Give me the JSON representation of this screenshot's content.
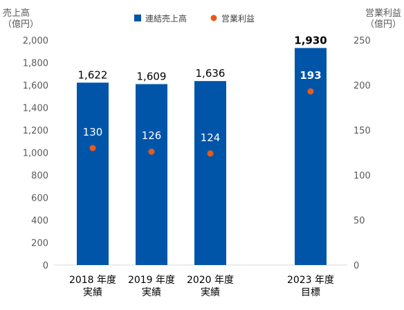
{
  "chart_data": {
    "type": "bar",
    "categories": [
      [
        "2018 年度",
        "実績"
      ],
      [
        "2019 年度",
        "実績"
      ],
      [
        "2020 年度",
        "実績"
      ],
      [
        "2023 年度",
        "目標"
      ]
    ],
    "legend": {
      "placement": "top-center",
      "items": [
        {
          "name": "連結売上高",
          "marker": "square",
          "color": "#0055A9"
        },
        {
          "name": "営業利益",
          "marker": "circle",
          "color": "#E85A1B"
        }
      ]
    },
    "y_left": {
      "label_lines": [
        "売上高",
        "（億円）"
      ],
      "ylim": [
        0,
        2000
      ],
      "ticks": [
        "0",
        "200",
        "400",
        "600",
        "800",
        "1,000",
        "1,200",
        "1,400",
        "1,600",
        "1,800",
        "2,000"
      ]
    },
    "y_right": {
      "label_lines": [
        "営業利益",
        "（億円）"
      ],
      "ylim": [
        0,
        250
      ],
      "ticks": [
        "0",
        "50",
        "100",
        "150",
        "200",
        "250"
      ]
    },
    "series": [
      {
        "name": "連結売上高",
        "kind": "bar",
        "axis": "left",
        "color": "#0055A9",
        "values": [
          1622,
          1609,
          1636,
          1930
        ],
        "labels": [
          "1,622",
          "1,609",
          "1,636",
          "1,930"
        ]
      },
      {
        "name": "営業利益",
        "kind": "point",
        "axis": "right",
        "color": "#E85A1B",
        "values": [
          130,
          126,
          124,
          193
        ],
        "labels": [
          "130",
          "126",
          "124",
          "193"
        ]
      }
    ],
    "emphasis_index": 3,
    "grid": false
  }
}
